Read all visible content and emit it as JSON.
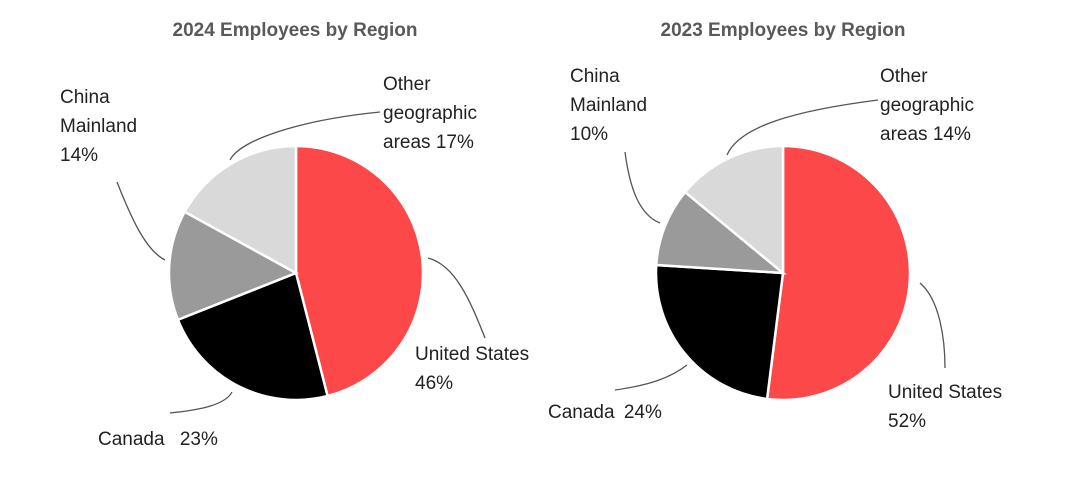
{
  "chart_data": [
    {
      "type": "pie",
      "title": "2024 Employees by Region",
      "categories": [
        "United States",
        "Canada",
        "China Mainland",
        "Other geographic areas"
      ],
      "values": [
        46,
        23,
        14,
        17
      ],
      "value_labels": [
        "46%",
        "23%",
        "14%",
        "17%"
      ],
      "colors": [
        "#fc4848",
        "#000000",
        "#9a9a9a",
        "#d9d9d9"
      ]
    },
    {
      "type": "pie",
      "title": "2023 Employees by Region",
      "categories": [
        "United States",
        "Canada",
        "China Mainland",
        "Other geographic areas"
      ],
      "values": [
        52,
        24,
        10,
        14
      ],
      "value_labels": [
        "52%",
        "24%",
        "10%",
        "14%"
      ],
      "colors": [
        "#fc4848",
        "#000000",
        "#9a9a9a",
        "#d9d9d9"
      ]
    }
  ]
}
